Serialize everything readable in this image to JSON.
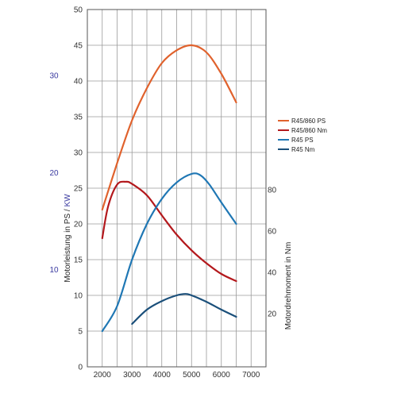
{
  "chart_data": {
    "type": "line",
    "x_ticks": [
      2000,
      3000,
      4000,
      5000,
      6000,
      7000
    ],
    "xlim": [
      1500,
      7500
    ],
    "y_left": {
      "label_ps": "Motorleistung in PS / ",
      "label_kw": "KW",
      "ticks": [
        0,
        5,
        10,
        15,
        20,
        25,
        30,
        35,
        40,
        45,
        50
      ],
      "ylim": [
        0,
        50
      ]
    },
    "y_kw": {
      "ticks": [
        10,
        20,
        30
      ],
      "color": "#3a3aa0"
    },
    "y_right": {
      "label": "Motordrehmoment in Nm",
      "ticks": [
        20,
        40,
        60,
        80
      ]
    },
    "legend_position": "right",
    "series": [
      {
        "name": "R45/860 PS",
        "color": "#e0622d",
        "x": [
          2000,
          2500,
          3000,
          3500,
          4000,
          4500,
          5000,
          5500,
          6000,
          6500
        ],
        "y": [
          22,
          28.5,
          34.5,
          39,
          42.5,
          44.3,
          45,
          44,
          41,
          37
        ]
      },
      {
        "name": "R45/860 Nm",
        "color": "#b3181c",
        "x": [
          2000,
          2200,
          2500,
          2800,
          3000,
          3500,
          4000,
          4500,
          5000,
          5500,
          6000,
          6500
        ],
        "y": [
          18,
          22.5,
          25.5,
          25.9,
          25.6,
          24,
          21.2,
          18.5,
          16.3,
          14.5,
          13,
          12
        ]
      },
      {
        "name": "R45 PS",
        "color": "#1f77b4",
        "x": [
          2000,
          2500,
          3000,
          3500,
          4000,
          4500,
          5000,
          5300,
          5600,
          6000,
          6500
        ],
        "y": [
          5,
          8.5,
          15,
          20,
          23.5,
          25.8,
          27,
          26.8,
          25.5,
          23,
          20
        ]
      },
      {
        "name": "R45 Nm",
        "color": "#1a4f7a",
        "x": [
          3000,
          3500,
          4000,
          4500,
          4800,
          5000,
          5500,
          6000,
          6500
        ],
        "y": [
          6,
          8,
          9.2,
          10,
          10.2,
          10,
          9.1,
          8,
          7
        ]
      }
    ]
  }
}
